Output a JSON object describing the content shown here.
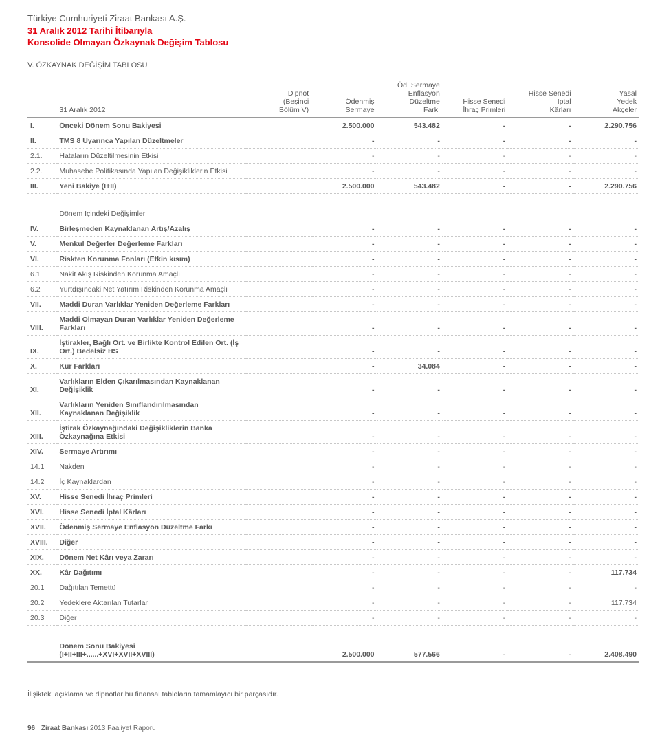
{
  "header": {
    "line1": "Türkiye Cumhuriyeti Ziraat Bankası A.Ş.",
    "line2": "31 Aralık 2012 Tarihi İtibarıyla",
    "line3": "Konsolide Olmayan Özkaynak Değişim Tablosu",
    "subtitle": "V. ÖZKAYNAK DEĞİŞİM TABLOSU"
  },
  "columns": {
    "c0": "31 Aralık 2012",
    "c1": "Dipnot\n(Beşinci\nBölüm V)",
    "c2": "Ödenmiş\nSermaye",
    "c3": "Öd. Sermaye\nEnflasyon\nDüzeltme\nFarkı",
    "c4": "Hisse Senedi\nİhraç Primleri",
    "c5": "Hisse Senedi\nİptal\nKârları",
    "c6": "Yasal\nYedek\nAkçeler"
  },
  "rows": [
    {
      "n": "I.",
      "label": "Önceki Dönem Sonu Bakiyesi",
      "v": [
        "",
        "2.500.000",
        "543.482",
        "-",
        "-",
        "2.290.756"
      ],
      "bold": true
    },
    {
      "n": "II.",
      "label": "TMS 8 Uyarınca Yapılan Düzeltmeler",
      "v": [
        "",
        "-",
        "-",
        "-",
        "-",
        "-"
      ],
      "bold": true
    },
    {
      "n": "2.1.",
      "label": "Hataların Düzeltilmesinin Etkisi",
      "v": [
        "",
        "-",
        "-",
        "-",
        "-",
        "-"
      ]
    },
    {
      "n": "2.2.",
      "label": "Muhasebe Politikasında Yapılan Değişikliklerin Etkisi",
      "v": [
        "",
        "-",
        "-",
        "-",
        "-",
        "-"
      ]
    },
    {
      "n": "III.",
      "label": "Yeni Bakiye (I+II)",
      "v": [
        "",
        "2.500.000",
        "543.482",
        "-",
        "-",
        "2.290.756"
      ],
      "bold": true
    },
    {
      "section": "Dönem İçindeki Değişimler"
    },
    {
      "n": "IV.",
      "label": "Birleşmeden Kaynaklanan Artış/Azalış",
      "v": [
        "",
        "-",
        "-",
        "-",
        "-",
        "-"
      ],
      "bold": true
    },
    {
      "n": "V.",
      "label": "Menkul Değerler Değerleme Farkları",
      "v": [
        "",
        "-",
        "-",
        "-",
        "-",
        "-"
      ],
      "bold": true
    },
    {
      "n": "VI.",
      "label": "Riskten Korunma Fonları (Etkin kısım)",
      "v": [
        "",
        "-",
        "-",
        "-",
        "-",
        "-"
      ],
      "bold": true
    },
    {
      "n": "6.1",
      "label": "Nakit Akış Riskinden Korunma Amaçlı",
      "v": [
        "",
        "-",
        "-",
        "-",
        "-",
        "-"
      ]
    },
    {
      "n": "6.2",
      "label": "Yurtdışındaki Net Yatırım Riskinden Korunma Amaçlı",
      "v": [
        "",
        "-",
        "-",
        "-",
        "-",
        "-"
      ]
    },
    {
      "n": "VII.",
      "label": "Maddi Duran Varlıklar Yeniden Değerleme Farkları",
      "v": [
        "",
        "-",
        "-",
        "-",
        "-",
        "-"
      ],
      "bold": true
    },
    {
      "n": "VIII.",
      "label": "Maddi Olmayan Duran Varlıklar Yeniden Değerleme Farkları",
      "v": [
        "",
        "-",
        "-",
        "-",
        "-",
        "-"
      ],
      "bold": true
    },
    {
      "n": "IX.",
      "label": "İştirakler, Bağlı Ort. ve Birlikte Kontrol Edilen Ort. (İş Ort.) Bedelsiz HS",
      "v": [
        "",
        "-",
        "-",
        "-",
        "-",
        "-"
      ],
      "bold": true
    },
    {
      "n": "X.",
      "label": "Kur Farkları",
      "v": [
        "",
        "-",
        "34.084",
        "-",
        "-",
        "-"
      ],
      "bold": true
    },
    {
      "n": "XI.",
      "label": "Varlıkların Elden Çıkarılmasından Kaynaklanan Değişiklik",
      "v": [
        "",
        "-",
        "-",
        "-",
        "-",
        "-"
      ],
      "bold": true
    },
    {
      "n": "XII.",
      "label": "Varlıkların Yeniden Sınıflandırılmasından Kaynaklanan Değişiklik",
      "v": [
        "",
        "-",
        "-",
        "-",
        "-",
        "-"
      ],
      "bold": true
    },
    {
      "n": "XIII.",
      "label": "İştirak Özkaynağındaki Değişikliklerin Banka Özkaynağına Etkisi",
      "v": [
        "",
        "-",
        "-",
        "-",
        "-",
        "-"
      ],
      "bold": true
    },
    {
      "n": "XIV.",
      "label": "Sermaye Artırımı",
      "v": [
        "",
        "-",
        "-",
        "-",
        "-",
        "-"
      ],
      "bold": true
    },
    {
      "n": "14.1",
      "label": "Nakden",
      "v": [
        "",
        "-",
        "-",
        "-",
        "-",
        "-"
      ]
    },
    {
      "n": "14.2",
      "label": "İç Kaynaklardan",
      "v": [
        "",
        "-",
        "-",
        "-",
        "-",
        "-"
      ]
    },
    {
      "n": "XV.",
      "label": "Hisse Senedi İhraç Primleri",
      "v": [
        "",
        "-",
        "-",
        "-",
        "-",
        "-"
      ],
      "bold": true
    },
    {
      "n": "XVI.",
      "label": "Hisse Senedi İptal Kârları",
      "v": [
        "",
        "-",
        "-",
        "-",
        "-",
        "-"
      ],
      "bold": true
    },
    {
      "n": "XVII.",
      "label": "Ödenmiş Sermaye Enflasyon Düzeltme Farkı",
      "v": [
        "",
        "-",
        "-",
        "-",
        "-",
        "-"
      ],
      "bold": true
    },
    {
      "n": "XVIII.",
      "label": "Diğer",
      "v": [
        "",
        "-",
        "-",
        "-",
        "-",
        "-"
      ],
      "bold": true
    },
    {
      "n": "XIX.",
      "label": "Dönem Net Kârı veya Zararı",
      "v": [
        "",
        "-",
        "-",
        "-",
        "-",
        "-"
      ],
      "bold": true
    },
    {
      "n": "XX.",
      "label": "Kâr Dağıtımı",
      "v": [
        "",
        "-",
        "-",
        "-",
        "-",
        "117.734"
      ],
      "bold": true
    },
    {
      "n": "20.1",
      "label": "Dağıtılan Temettü",
      "v": [
        "",
        "-",
        "-",
        "-",
        "-",
        "-"
      ]
    },
    {
      "n": "20.2",
      "label": "Yedeklere Aktarılan Tutarlar",
      "v": [
        "",
        "-",
        "-",
        "-",
        "-",
        "117.734"
      ]
    },
    {
      "n": "20.3",
      "label": "Diğer",
      "v": [
        "",
        "-",
        "-",
        "-",
        "-",
        "-"
      ]
    }
  ],
  "total": {
    "label": "Dönem Sonu Bakiyesi\n(I+II+III+......+XVI+XVII+XVIII)",
    "v": [
      "",
      "2.500.000",
      "577.566",
      "-",
      "-",
      "2.408.490"
    ]
  },
  "footnote": "İlişikteki açıklama ve dipnotlar bu finansal tabloların tamamlayıcı bir parçasıdır.",
  "pagefoot": {
    "num": "96",
    "bold": "Ziraat Bankası",
    "rest": " 2013 Faaliyet Raporu"
  },
  "style": {
    "accent": "#e30613",
    "text": "#5a5a5a",
    "rule": "#9a9a9a",
    "dotted": "#c8c8c8",
    "bg": "#ffffff",
    "font_body": 10.5,
    "font_header": 13
  }
}
